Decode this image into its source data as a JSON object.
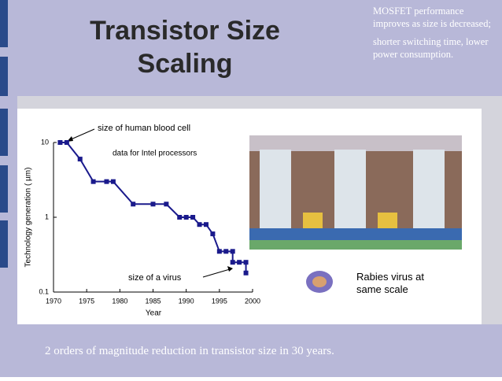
{
  "slide": {
    "title": "Transistor Size Scaling",
    "notes": [
      "MOSFET performance improves as size is decreased;",
      "shorter switching time, lower power consumption."
    ],
    "caption": "2 orders of magnitude reduction in transistor size in 30 years."
  },
  "chart_data": {
    "type": "line",
    "x": [
      1971,
      1972,
      1974,
      1976,
      1978,
      1979,
      1982,
      1985,
      1987,
      1989,
      1990,
      1991,
      1992,
      1993,
      1994,
      1995,
      1996,
      1997,
      1997,
      1998,
      1999,
      1999
    ],
    "values": [
      10,
      10,
      6,
      3,
      3,
      3,
      1.5,
      1.5,
      1.5,
      1,
      1,
      1,
      0.8,
      0.8,
      0.6,
      0.35,
      0.35,
      0.35,
      0.25,
      0.25,
      0.25,
      0.18
    ],
    "color": "#1a1a8c",
    "xlabel": "Year",
    "ylabel": "Technology generation ( µm)",
    "xlim": [
      1970,
      2000
    ],
    "xticks": [
      1970,
      1975,
      1980,
      1985,
      1990,
      1995,
      2000
    ],
    "ylim": [
      0.1,
      10
    ],
    "yticks": [
      0.1,
      1,
      10
    ],
    "log_y": true,
    "annotations": [
      "size of human blood cell",
      "data for Intel processors",
      "size of a virus",
      "Rabies virus at same scale"
    ]
  }
}
